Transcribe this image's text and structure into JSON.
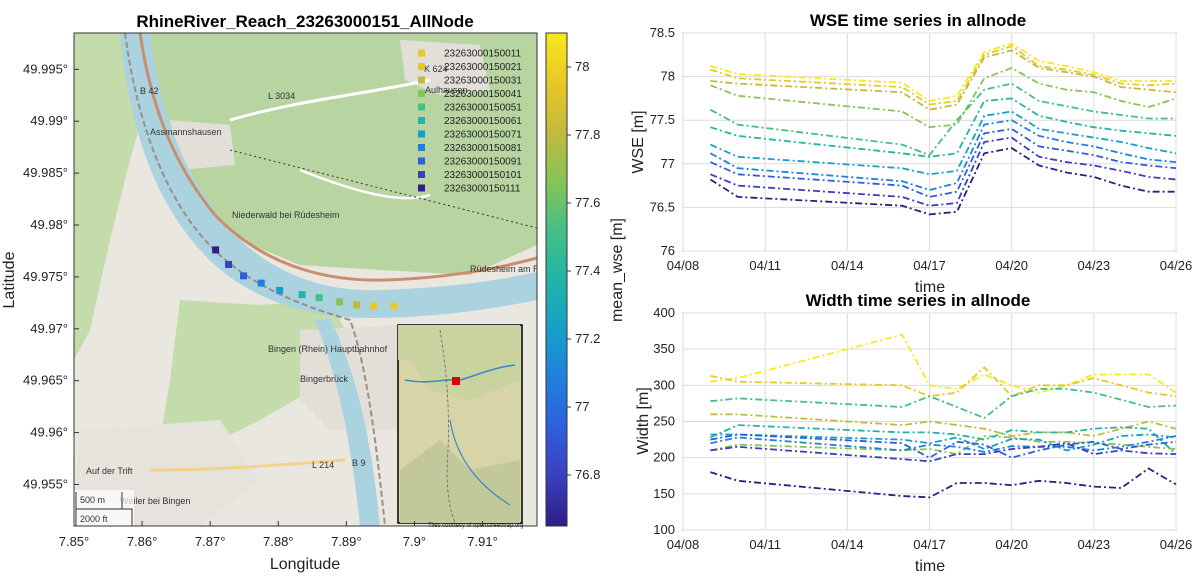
{
  "colors": {
    "viridis": [
      "#2e1e86",
      "#3a3fbf",
      "#2f5fdc",
      "#2080de",
      "#16a0c8",
      "#22b4a6",
      "#44bf86",
      "#88c455",
      "#c4b93c",
      "#e8c827",
      "#f8e91b"
    ],
    "water": "#aad3df",
    "land": "#bcd6a6",
    "outlier_red": "#e00000"
  },
  "chart_data": [
    {
      "type": "scatter",
      "title": "RhineRiver_Reach_23263000151_AllNode",
      "xlabel": "Longitude",
      "ylabel": "Latitude",
      "xlim": [
        7.85,
        7.918
      ],
      "ylim": [
        49.951,
        49.9985
      ],
      "x_ticks": [
        "7.85°",
        "7.86°",
        "7.87°",
        "7.88°",
        "7.89°",
        "7.9°",
        "7.91°"
      ],
      "y_ticks": [
        "49.995°",
        "49.99°",
        "49.985°",
        "49.98°",
        "49.975°",
        "49.97°",
        "49.965°",
        "49.96°",
        "49.955°"
      ],
      "colorbar": {
        "label": "mean_wse [m]",
        "min": 76.65,
        "max": 78.1,
        "ticks": [
          "78",
          "77.8",
          "77.6",
          "77.4",
          "77.2",
          "77",
          "76.8"
        ]
      },
      "nodes": [
        {
          "id": "23263000150011",
          "lon": 7.897,
          "lat": 49.9722,
          "mean_wse": 78.02
        },
        {
          "id": "23263000150021",
          "lon": 7.894,
          "lat": 49.9722,
          "mean_wse": 77.95
        },
        {
          "id": "23263000150031",
          "lon": 7.8915,
          "lat": 49.9723,
          "mean_wse": 77.82
        },
        {
          "id": "23263000150041",
          "lon": 7.889,
          "lat": 49.9726,
          "mean_wse": 77.65
        },
        {
          "id": "23263000150051",
          "lon": 7.886,
          "lat": 49.973,
          "mean_wse": 77.52
        },
        {
          "id": "23263000150061",
          "lon": 7.8835,
          "lat": 49.9733,
          "mean_wse": 77.32
        },
        {
          "id": "23263000150071",
          "lon": 7.8802,
          "lat": 49.9737,
          "mean_wse": 77.22
        },
        {
          "id": "23263000150081",
          "lon": 7.8775,
          "lat": 49.9744,
          "mean_wse": 77.08
        },
        {
          "id": "23263000150091",
          "lon": 7.8749,
          "lat": 49.9751,
          "mean_wse": 76.95
        },
        {
          "id": "23263000150101",
          "lon": 7.8727,
          "lat": 49.9762,
          "mean_wse": 76.85
        },
        {
          "id": "23263000150111",
          "lon": 7.8708,
          "lat": 49.9776,
          "mean_wse": 76.72
        }
      ],
      "map_labels": [
        "Aulhausen",
        "Assmannshausen",
        "Niederwald bei Rüdesheim",
        "Rüdesheim am Rhein",
        "Bingen (Rhein) Hauptbahnhof",
        "Bingerbrück",
        "Weiler bei Bingen",
        "B 42",
        "L 3034",
        "K 624",
        "B 9",
        "L 214",
        "Auf der Trift"
      ],
      "scale_bar": [
        "500 m",
        "2000 ft"
      ],
      "inset_credit": "Tiles courtesy of openstreetmap.org"
    },
    {
      "type": "line",
      "title": "WSE time series in allnode",
      "xlabel": "time",
      "ylabel": "WSE [m]",
      "x_ticks": [
        "04/08",
        "04/11",
        "04/14",
        "04/17",
        "04/20",
        "04/23",
        "04/26"
      ],
      "ylim": [
        76,
        78.5
      ],
      "y_ticks": [
        "76",
        "76.5",
        "77",
        "77.5",
        "78",
        "78.5"
      ],
      "x_days": [
        9,
        10,
        16,
        17,
        18,
        19,
        20,
        21,
        22,
        23,
        24,
        25,
        26
      ],
      "series": [
        {
          "values": [
            78.12,
            78.03,
            77.93,
            77.72,
            77.78,
            78.28,
            78.38,
            78.18,
            78.12,
            78.05,
            77.95,
            77.95,
            77.95
          ]
        },
        {
          "values": [
            78.08,
            77.98,
            77.88,
            77.68,
            77.72,
            78.25,
            78.35,
            78.12,
            78.08,
            78.02,
            77.92,
            77.9,
            77.92
          ]
        },
        {
          "values": [
            77.95,
            77.92,
            77.82,
            77.62,
            77.68,
            78.22,
            78.3,
            78.1,
            78.05,
            78.0,
            77.88,
            77.85,
            77.82
          ]
        },
        {
          "values": [
            77.9,
            77.78,
            77.6,
            77.42,
            77.45,
            77.98,
            78.1,
            77.92,
            77.85,
            77.82,
            77.72,
            77.65,
            77.75
          ]
        },
        {
          "values": [
            77.62,
            77.45,
            77.22,
            77.1,
            77.5,
            77.85,
            77.92,
            77.72,
            77.66,
            77.6,
            77.56,
            77.52,
            77.52
          ]
        },
        {
          "values": [
            77.42,
            77.32,
            77.12,
            77.08,
            77.12,
            77.72,
            77.75,
            77.55,
            77.48,
            77.42,
            77.38,
            77.35,
            77.32
          ]
        },
        {
          "values": [
            77.22,
            77.08,
            76.95,
            76.88,
            76.92,
            77.55,
            77.6,
            77.4,
            77.35,
            77.3,
            77.25,
            77.18,
            77.12
          ]
        },
        {
          "values": [
            77.12,
            76.95,
            76.8,
            76.7,
            76.78,
            77.45,
            77.5,
            77.32,
            77.25,
            77.2,
            77.12,
            77.05,
            77.02
          ]
        },
        {
          "values": [
            77.02,
            76.88,
            76.75,
            76.62,
            76.68,
            77.35,
            77.4,
            77.2,
            77.15,
            77.1,
            77.02,
            76.98,
            76.95
          ]
        },
        {
          "values": [
            76.88,
            76.75,
            76.62,
            76.52,
            76.55,
            77.25,
            77.3,
            77.08,
            77.02,
            76.98,
            76.92,
            76.85,
            76.82
          ]
        },
        {
          "values": [
            76.82,
            76.62,
            76.52,
            76.42,
            76.45,
            77.12,
            77.18,
            76.98,
            76.9,
            76.85,
            76.75,
            76.68,
            76.68
          ]
        }
      ]
    },
    {
      "type": "line",
      "title": "Width time series in allnode",
      "xlabel": "time",
      "ylabel": "Width [m]",
      "x_ticks": [
        "04/08",
        "04/11",
        "04/14",
        "04/17",
        "04/20",
        "04/23",
        "04/26"
      ],
      "ylim": [
        100,
        400
      ],
      "y_ticks": [
        "100",
        "150",
        "200",
        "250",
        "300",
        "350",
        "400"
      ],
      "x_days": [
        9,
        10,
        16,
        17,
        18,
        19,
        20,
        21,
        22,
        23,
        24,
        25,
        26
      ],
      "series": [
        {
          "values": [
            305,
            310,
            370,
            300,
            295,
            315,
            300,
            290,
            300,
            315,
            315,
            315,
            290
          ]
        },
        {
          "values": [
            313,
            305,
            300,
            285,
            290,
            325,
            285,
            300,
            300,
            310,
            300,
            290,
            285
          ]
        },
        {
          "values": [
            260,
            260,
            245,
            250,
            245,
            240,
            230,
            235,
            235,
            230,
            240,
            250,
            240
          ]
        },
        {
          "values": [
            210,
            218,
            210,
            212,
            205,
            230,
            228,
            222,
            222,
            220,
            218,
            215,
            212
          ]
        },
        {
          "values": [
            278,
            282,
            270,
            285,
            270,
            255,
            285,
            295,
            295,
            290,
            280,
            270,
            272
          ]
        },
        {
          "values": [
            228,
            245,
            235,
            235,
            232,
            225,
            238,
            235,
            235,
            240,
            242,
            240,
            205
          ]
        },
        {
          "values": [
            232,
            232,
            225,
            220,
            228,
            212,
            226,
            225,
            210,
            218,
            230,
            232,
            228
          ]
        },
        {
          "values": [
            220,
            228,
            210,
            218,
            215,
            208,
            216,
            215,
            215,
            210,
            215,
            222,
            230
          ]
        },
        {
          "values": [
            225,
            232,
            220,
            200,
            222,
            218,
            200,
            210,
            218,
            222,
            212,
            218,
            222
          ]
        },
        {
          "values": [
            210,
            215,
            198,
            195,
            205,
            205,
            212,
            215,
            220,
            205,
            210,
            206,
            205
          ]
        },
        {
          "values": [
            180,
            168,
            147,
            145,
            165,
            165,
            162,
            168,
            165,
            160,
            158,
            185,
            163
          ]
        }
      ]
    }
  ]
}
